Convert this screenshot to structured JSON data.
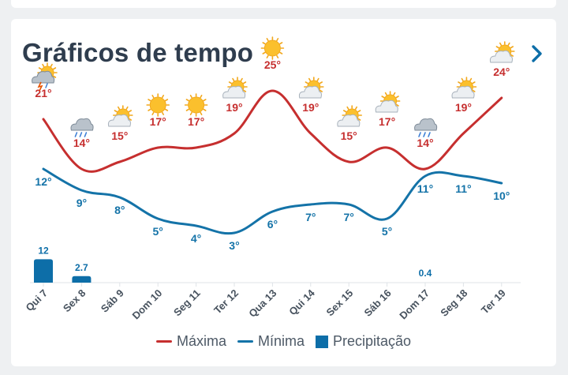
{
  "header": {
    "title": "Gráficos de tempo"
  },
  "colors": {
    "max": "#c62f2f",
    "min": "#1473a8",
    "precip": "#0d6ea8",
    "title": "#2f3d4e"
  },
  "legend": {
    "max_label": "Máxima",
    "min_label": "Mínima",
    "precip_label": "Precipitação"
  },
  "chart_data": {
    "type": "line",
    "categories": [
      "Qui 7",
      "Sex 8",
      "Sáb 9",
      "Dom 10",
      "Seg 11",
      "Ter 12",
      "Qua 13",
      "Qui 14",
      "Sex 15",
      "Sáb 16",
      "Dom 17",
      "Seg 18",
      "Ter 19"
    ],
    "series": [
      {
        "name": "Máxima",
        "values": [
          21,
          14,
          15,
          17,
          17,
          19,
          25,
          19,
          15,
          17,
          14,
          19,
          24
        ],
        "labels": [
          "21°",
          "14°",
          "15°",
          "17°",
          "17°",
          "19°",
          "25°",
          "19°",
          "15°",
          "17°",
          "14°",
          "19°",
          "24°"
        ]
      },
      {
        "name": "Mínima",
        "values": [
          12,
          9,
          8,
          5,
          4,
          3,
          6,
          7,
          7,
          5,
          11,
          11,
          10
        ],
        "labels": [
          "12°",
          "9°",
          "8°",
          "5°",
          "4°",
          "3°",
          "6°",
          "7°",
          "7°",
          "5°",
          "11°",
          "11°",
          "10°"
        ]
      },
      {
        "name": "Precipitação",
        "values": [
          12,
          2.7,
          0,
          0,
          0,
          0,
          0,
          0,
          0,
          0,
          0.4,
          0,
          0
        ],
        "labels": [
          "12",
          "2.7",
          "",
          "",
          "",
          "",
          "",
          "",
          "",
          "",
          "0.4",
          "",
          ""
        ]
      }
    ],
    "icons": [
      "storm-sun-icon",
      "rain-cloud-icon",
      "partly-cloudy-icon",
      "sun-icon",
      "sun-icon",
      "partly-cloudy-icon",
      "sun-icon",
      "partly-cloudy-icon",
      "partly-cloudy-icon",
      "partly-cloudy-icon",
      "rain-cloud-icon",
      "partly-cloudy-icon",
      "partly-cloudy-icon"
    ]
  }
}
